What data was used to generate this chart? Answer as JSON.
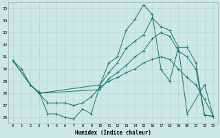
{
  "bg_color": "#cce8e4",
  "grid_color": "#b8d8d4",
  "line_color": "#1a7a6a",
  "xlabel": "Humidex (Indice chaleur)",
  "xlim": [
    -0.5,
    23.5
  ],
  "ylim": [
    25.5,
    35.5
  ],
  "xticks": [
    0,
    1,
    2,
    3,
    4,
    5,
    6,
    7,
    8,
    9,
    10,
    11,
    12,
    13,
    14,
    15,
    16,
    17,
    18,
    19,
    20,
    21,
    22,
    23
  ],
  "yticks": [
    26,
    27,
    28,
    29,
    30,
    31,
    32,
    33,
    34,
    35
  ],
  "lineA_x": [
    0,
    1,
    2,
    3,
    4,
    5,
    6,
    7,
    8,
    9,
    10,
    11,
    12,
    13,
    14,
    15,
    16,
    17,
    18,
    19,
    20,
    22,
    23
  ],
  "lineA_y": [
    30.7,
    30.0,
    28.7,
    28.1,
    26.3,
    26.3,
    26.0,
    25.9,
    26.7,
    26.3,
    28.7,
    30.5,
    31.0,
    33.2,
    34.1,
    35.3,
    34.5,
    30.0,
    29.0,
    31.8,
    26.3,
    28.7,
    26.1
  ],
  "lineB_x": [
    0,
    2,
    3,
    10,
    11,
    12,
    13,
    14,
    15,
    16,
    17,
    18,
    19,
    20,
    21,
    22,
    23
  ],
  "lineB_y": [
    30.7,
    28.7,
    28.0,
    28.7,
    29.7,
    30.5,
    31.7,
    32.3,
    32.8,
    34.2,
    33.5,
    33.2,
    31.8,
    31.8,
    30.5,
    26.2,
    26.1
  ],
  "lineC_x": [
    0,
    2,
    3,
    10,
    11,
    12,
    13,
    14,
    15,
    16,
    17,
    18,
    19,
    20,
    21,
    22,
    23
  ],
  "lineC_y": [
    30.7,
    28.7,
    28.0,
    28.3,
    29.2,
    29.7,
    30.3,
    31.0,
    31.5,
    32.5,
    33.0,
    32.7,
    31.5,
    31.0,
    30.0,
    26.2,
    26.1
  ],
  "lineD_x": [
    2,
    3,
    4,
    5,
    6,
    7,
    8,
    9,
    10,
    11,
    12,
    13,
    14,
    15,
    16,
    17,
    18,
    19,
    20,
    21,
    22,
    23
  ],
  "lineD_y": [
    28.7,
    28.0,
    27.2,
    27.2,
    27.2,
    27.0,
    27.2,
    27.7,
    28.5,
    29.0,
    29.3,
    29.7,
    30.0,
    30.5,
    30.8,
    31.0,
    30.8,
    30.0,
    29.3,
    28.7,
    27.5,
    26.1
  ]
}
